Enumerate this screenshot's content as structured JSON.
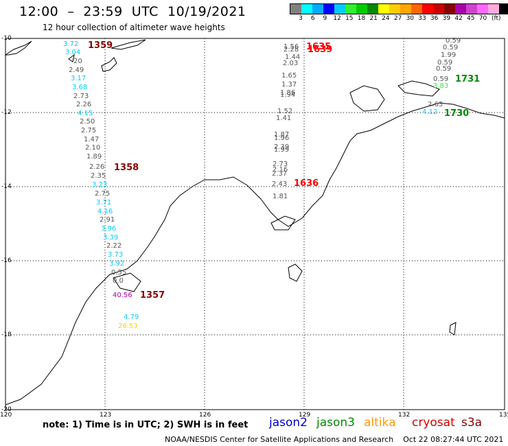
{
  "header": {
    "title": "12:00  –  23:59  UTC  10/19/2021",
    "subtitle": "12 hour collection of altimeter wave heights"
  },
  "legend": {
    "colors": [
      "#808080",
      "#00ffff",
      "#00aaff",
      "#0000ff",
      "#00ccff",
      "#33ee33",
      "#00cc00",
      "#008800",
      "#ffff00",
      "#ffcc00",
      "#ffa500",
      "#ff6600",
      "#ff0000",
      "#cc0000",
      "#880000",
      "#aa00aa",
      "#cc44cc",
      "#ff66ff",
      "#ffaadd",
      "#000000"
    ],
    "ticks": [
      "3",
      "6",
      "9",
      "12",
      "15",
      "18",
      "21",
      "24",
      "27",
      "30",
      "33",
      "36",
      "39",
      "42",
      "45",
      "70"
    ],
    "unit": "(ft)"
  },
  "axes": {
    "y_labels": [
      "-10",
      "-12",
      "-14",
      "-16",
      "-18",
      "-20"
    ],
    "x_labels": [
      "120",
      "123",
      "126",
      "129",
      "132",
      "135"
    ]
  },
  "track_labels": [
    {
      "text": "1359",
      "color": "#880000"
    },
    {
      "text": "1358",
      "color": "#880000"
    },
    {
      "text": "1357",
      "color": "#880000"
    },
    {
      "text": "1635",
      "color": "#ff0000"
    },
    {
      "text": "1639",
      "color": "#ff0000"
    },
    {
      "text": "1636",
      "color": "#ff0000"
    },
    {
      "text": "1731",
      "color": "#008800"
    },
    {
      "text": "1730",
      "color": "#008800"
    }
  ],
  "wave_values": [
    {
      "text": "3.72",
      "color": "#00ccff"
    },
    {
      "text": "3.04",
      "color": "#00ccff"
    },
    {
      "text": "20",
      "color": "#555555"
    },
    {
      "text": "2.49",
      "color": "#555555"
    },
    {
      "text": "3.17",
      "color": "#00ccff"
    },
    {
      "text": "3.68",
      "color": "#00ccff"
    },
    {
      "text": "2.73",
      "color": "#555555"
    },
    {
      "text": "2.26",
      "color": "#555555"
    },
    {
      "text": "4.15",
      "color": "#00ccff"
    },
    {
      "text": "2.50",
      "color": "#555555"
    },
    {
      "text": "2.75",
      "color": "#555555"
    },
    {
      "text": "1.47",
      "color": "#555555"
    },
    {
      "text": "2.10",
      "color": "#555555"
    },
    {
      "text": "1.89",
      "color": "#555555"
    },
    {
      "text": "2.26",
      "color": "#555555"
    },
    {
      "text": "2.35",
      "color": "#555555"
    },
    {
      "text": "3.23",
      "color": "#00ccff"
    },
    {
      "text": "2.75",
      "color": "#555555"
    },
    {
      "text": "3.71",
      "color": "#00ccff"
    },
    {
      "text": "4.16",
      "color": "#00ccff"
    },
    {
      "text": "2.91",
      "color": "#555555"
    },
    {
      "text": "3.96",
      "color": "#00ccff"
    },
    {
      "text": "3.39",
      "color": "#00ccff"
    },
    {
      "text": "2.22",
      "color": "#555555"
    },
    {
      "text": "3.73",
      "color": "#00ccff"
    },
    {
      "text": "3.92",
      "color": "#00ccff"
    },
    {
      "text": "0.55",
      "color": "#555555"
    },
    {
      "text": "0.0",
      "color": "#555555"
    },
    {
      "text": "40.56",
      "color": "#aa00aa"
    },
    {
      "text": "4.79",
      "color": "#00ccff"
    },
    {
      "text": "26.53",
      "color": "#ffcc00"
    },
    {
      "text": "1.56",
      "color": "#555555"
    },
    {
      "text": "2.28",
      "color": "#555555"
    },
    {
      "text": "1.44",
      "color": "#555555"
    },
    {
      "text": "2.03",
      "color": "#555555"
    },
    {
      "text": "1.65",
      "color": "#555555"
    },
    {
      "text": "1.37",
      "color": "#555555"
    },
    {
      "text": "1.86",
      "color": "#555555"
    },
    {
      "text": "1.94",
      "color": "#555555"
    },
    {
      "text": "1.52",
      "color": "#555555"
    },
    {
      "text": "1.41",
      "color": "#555555"
    },
    {
      "text": "1.87",
      "color": "#555555"
    },
    {
      "text": "1.96",
      "color": "#555555"
    },
    {
      "text": "2.39",
      "color": "#555555"
    },
    {
      "text": "1.99",
      "color": "#555555"
    },
    {
      "text": "2.73",
      "color": "#555555"
    },
    {
      "text": "2.16",
      "color": "#555555"
    },
    {
      "text": "2.37",
      "color": "#555555"
    },
    {
      "text": "2.43",
      "color": "#555555"
    },
    {
      "text": "1.81",
      "color": "#555555"
    },
    {
      "text": "0.59",
      "color": "#555555"
    },
    {
      "text": "0.59",
      "color": "#555555"
    },
    {
      "text": "1.99",
      "color": "#555555"
    },
    {
      "text": "0.59",
      "color": "#555555"
    },
    {
      "text": "0.59",
      "color": "#555555"
    },
    {
      "text": "0.59",
      "color": "#555555"
    },
    {
      "text": "3.83",
      "color": "#33ee33"
    },
    {
      "text": "2.63",
      "color": "#555555"
    },
    {
      "text": "4.12",
      "color": "#00ccff"
    }
  ],
  "footer": {
    "note": "note:  1) Time is in UTC;  2) SWH is in feet",
    "satellites": [
      {
        "name": "jason2",
        "color": "#0000cc"
      },
      {
        "name": "jason3",
        "color": "#008800"
      },
      {
        "name": "altika",
        "color": "#ff9900"
      },
      {
        "name": "cryosat",
        "color": "#cc0000"
      },
      {
        "name": "s3a",
        "color": "#880000"
      }
    ],
    "credit": "NOAA/NESDIS Center for Satellite Applications and Research    Oct 22 08:27:44 UTC 2021"
  }
}
